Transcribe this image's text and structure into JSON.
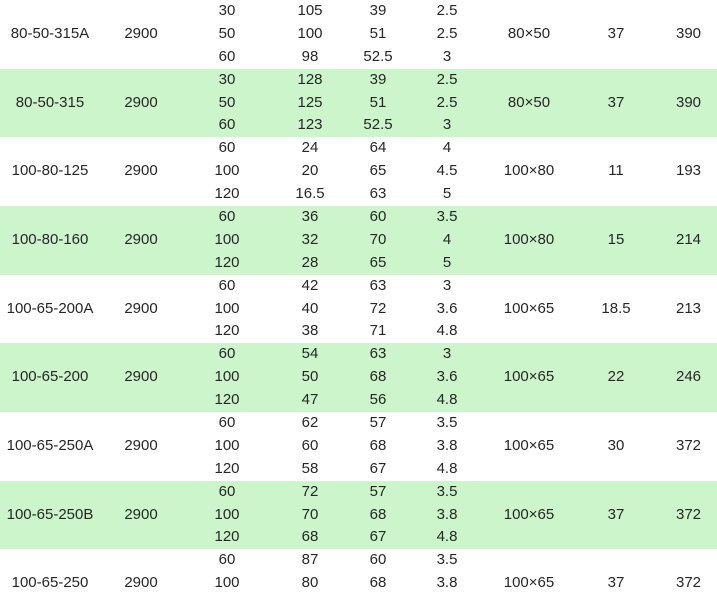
{
  "colors": {
    "background": "#ffffff",
    "shaded_row": "#ccf5cc",
    "text": "#262626"
  },
  "table": {
    "groups": [
      {
        "model": "80-50-315A",
        "speed": "2900",
        "size": "80×50",
        "power": "37",
        "weight": "390",
        "shaded": false,
        "subrows": [
          [
            "30",
            "105",
            "39",
            "2.5"
          ],
          [
            "50",
            "100",
            "51",
            "2.5"
          ],
          [
            "60",
            "98",
            "52.5",
            "3"
          ]
        ]
      },
      {
        "model": "80-50-315",
        "speed": "2900",
        "size": "80×50",
        "power": "37",
        "weight": "390",
        "shaded": true,
        "subrows": [
          [
            "30",
            "128",
            "39",
            "2.5"
          ],
          [
            "50",
            "125",
            "51",
            "2.5"
          ],
          [
            "60",
            "123",
            "52.5",
            "3"
          ]
        ]
      },
      {
        "model": "100-80-125",
        "speed": "2900",
        "size": "100×80",
        "power": "11",
        "weight": "193",
        "shaded": false,
        "subrows": [
          [
            "60",
            "24",
            "64",
            "4"
          ],
          [
            "100",
            "20",
            "65",
            "4.5"
          ],
          [
            "120",
            "16.5",
            "63",
            "5"
          ]
        ]
      },
      {
        "model": "100-80-160",
        "speed": "2900",
        "size": "100×80",
        "power": "15",
        "weight": "214",
        "shaded": true,
        "subrows": [
          [
            "60",
            "36",
            "60",
            "3.5"
          ],
          [
            "100",
            "32",
            "70",
            "4"
          ],
          [
            "120",
            "28",
            "65",
            "5"
          ]
        ]
      },
      {
        "model": "100-65-200A",
        "speed": "2900",
        "size": "100×65",
        "power": "18.5",
        "weight": "213",
        "shaded": false,
        "subrows": [
          [
            "60",
            "42",
            "63",
            "3"
          ],
          [
            "100",
            "40",
            "72",
            "3.6"
          ],
          [
            "120",
            "38",
            "71",
            "4.8"
          ]
        ]
      },
      {
        "model": "100-65-200",
        "speed": "2900",
        "size": "100×65",
        "power": "22",
        "weight": "246",
        "shaded": true,
        "subrows": [
          [
            "60",
            "54",
            "63",
            "3"
          ],
          [
            "100",
            "50",
            "68",
            "3.6"
          ],
          [
            "120",
            "47",
            "56",
            "4.8"
          ]
        ]
      },
      {
        "model": "100-65-250A",
        "speed": "2900",
        "size": "100×65",
        "power": "30",
        "weight": "372",
        "shaded": false,
        "subrows": [
          [
            "60",
            "62",
            "57",
            "3.5"
          ],
          [
            "100",
            "60",
            "68",
            "3.8"
          ],
          [
            "120",
            "58",
            "67",
            "4.8"
          ]
        ]
      },
      {
        "model": "100-65-250B",
        "speed": "2900",
        "size": "100×65",
        "power": "37",
        "weight": "372",
        "shaded": true,
        "subrows": [
          [
            "60",
            "72",
            "57",
            "3.5"
          ],
          [
            "100",
            "70",
            "68",
            "3.8"
          ],
          [
            "120",
            "68",
            "67",
            "4.8"
          ]
        ]
      },
      {
        "model": "100-65-250",
        "speed": "2900",
        "size": "100×65",
        "power": "37",
        "weight": "372",
        "shaded": false,
        "subrows": [
          [
            "60",
            "87",
            "60",
            "3.5"
          ],
          [
            "100",
            "80",
            "68",
            "3.8"
          ]
        ]
      }
    ]
  }
}
